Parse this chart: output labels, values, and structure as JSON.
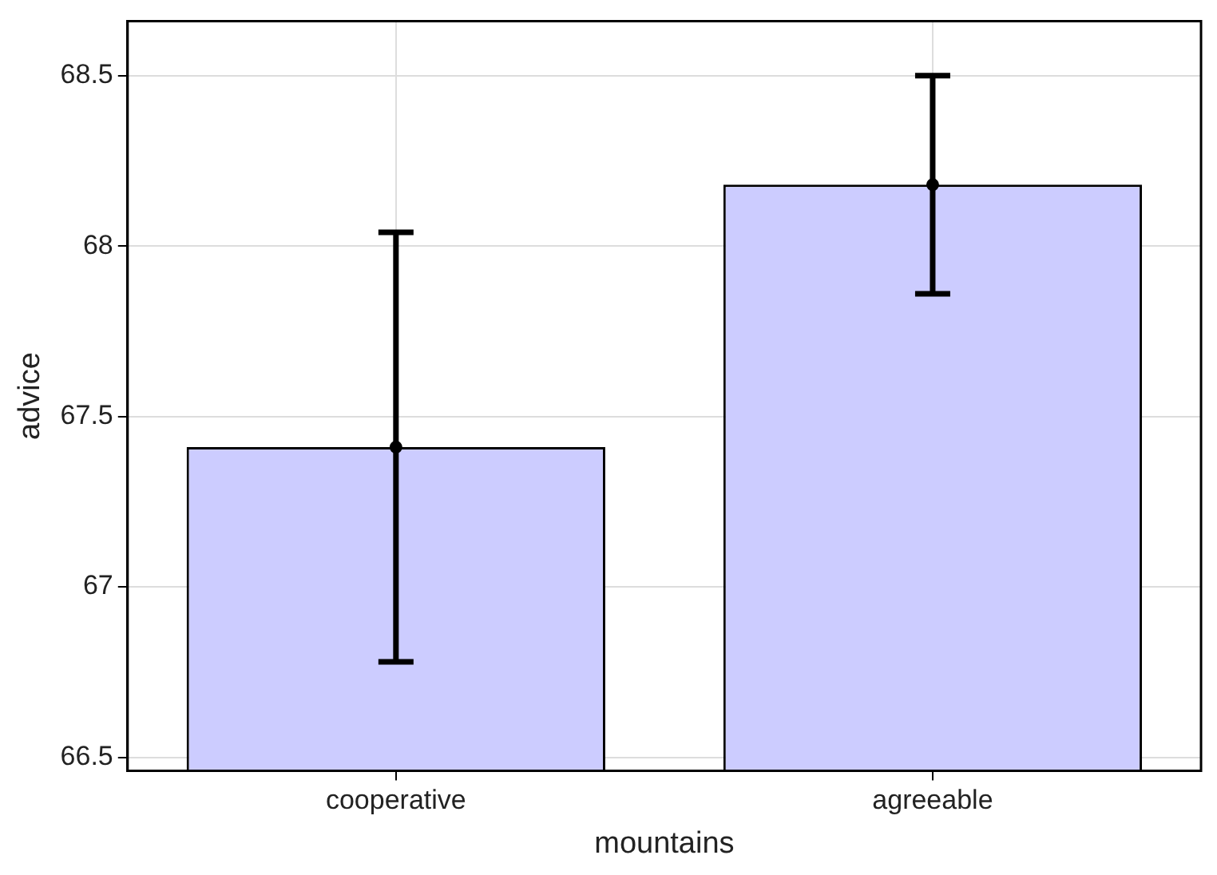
{
  "chart_data": {
    "type": "bar",
    "xlabel": "mountains",
    "ylabel": "advice",
    "categories": [
      "cooperative",
      "agreeable"
    ],
    "values": [
      67.41,
      68.18
    ],
    "errors": [
      0.63,
      0.32
    ],
    "color": "#ccccff",
    "series": [
      {
        "type": "scatter",
        "x": [
          "cooperative",
          "agreeable"
        ],
        "values": [
          67.41,
          68.18
        ],
        "color": "#000000",
        "marker": "circle"
      }
    ],
    "ylim": [
      66.46,
      68.66
    ],
    "yticks": [
      66.5,
      67,
      67.5,
      68,
      68.5
    ],
    "grid": true,
    "legend": false
  }
}
